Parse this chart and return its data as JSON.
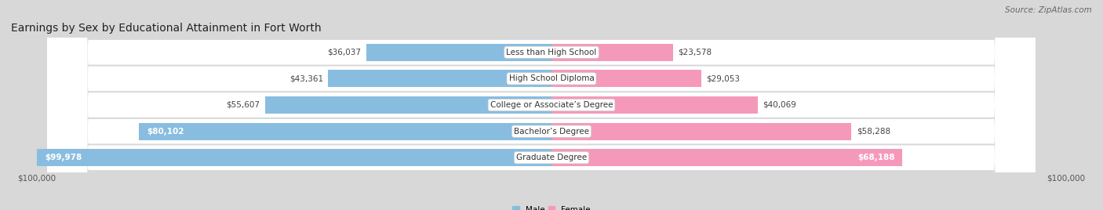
{
  "title": "Earnings by Sex by Educational Attainment in Fort Worth",
  "source": "Source: ZipAtlas.com",
  "categories": [
    "Less than High School",
    "High School Diploma",
    "College or Associate’s Degree",
    "Bachelor’s Degree",
    "Graduate Degree"
  ],
  "male_values": [
    36037,
    43361,
    55607,
    80102,
    99978
  ],
  "female_values": [
    23578,
    29053,
    40069,
    58288,
    68188
  ],
  "male_color": "#88bde0",
  "female_color": "#f599bb",
  "max_val": 100000,
  "background_color": "#d8d8d8",
  "row_color_light": "#f0f0f0",
  "row_color_dark": "#e4e4e4",
  "title_fontsize": 10,
  "source_fontsize": 7.5,
  "label_fontsize": 7.5,
  "value_fontsize": 7.5,
  "axis_label": "$100,000"
}
